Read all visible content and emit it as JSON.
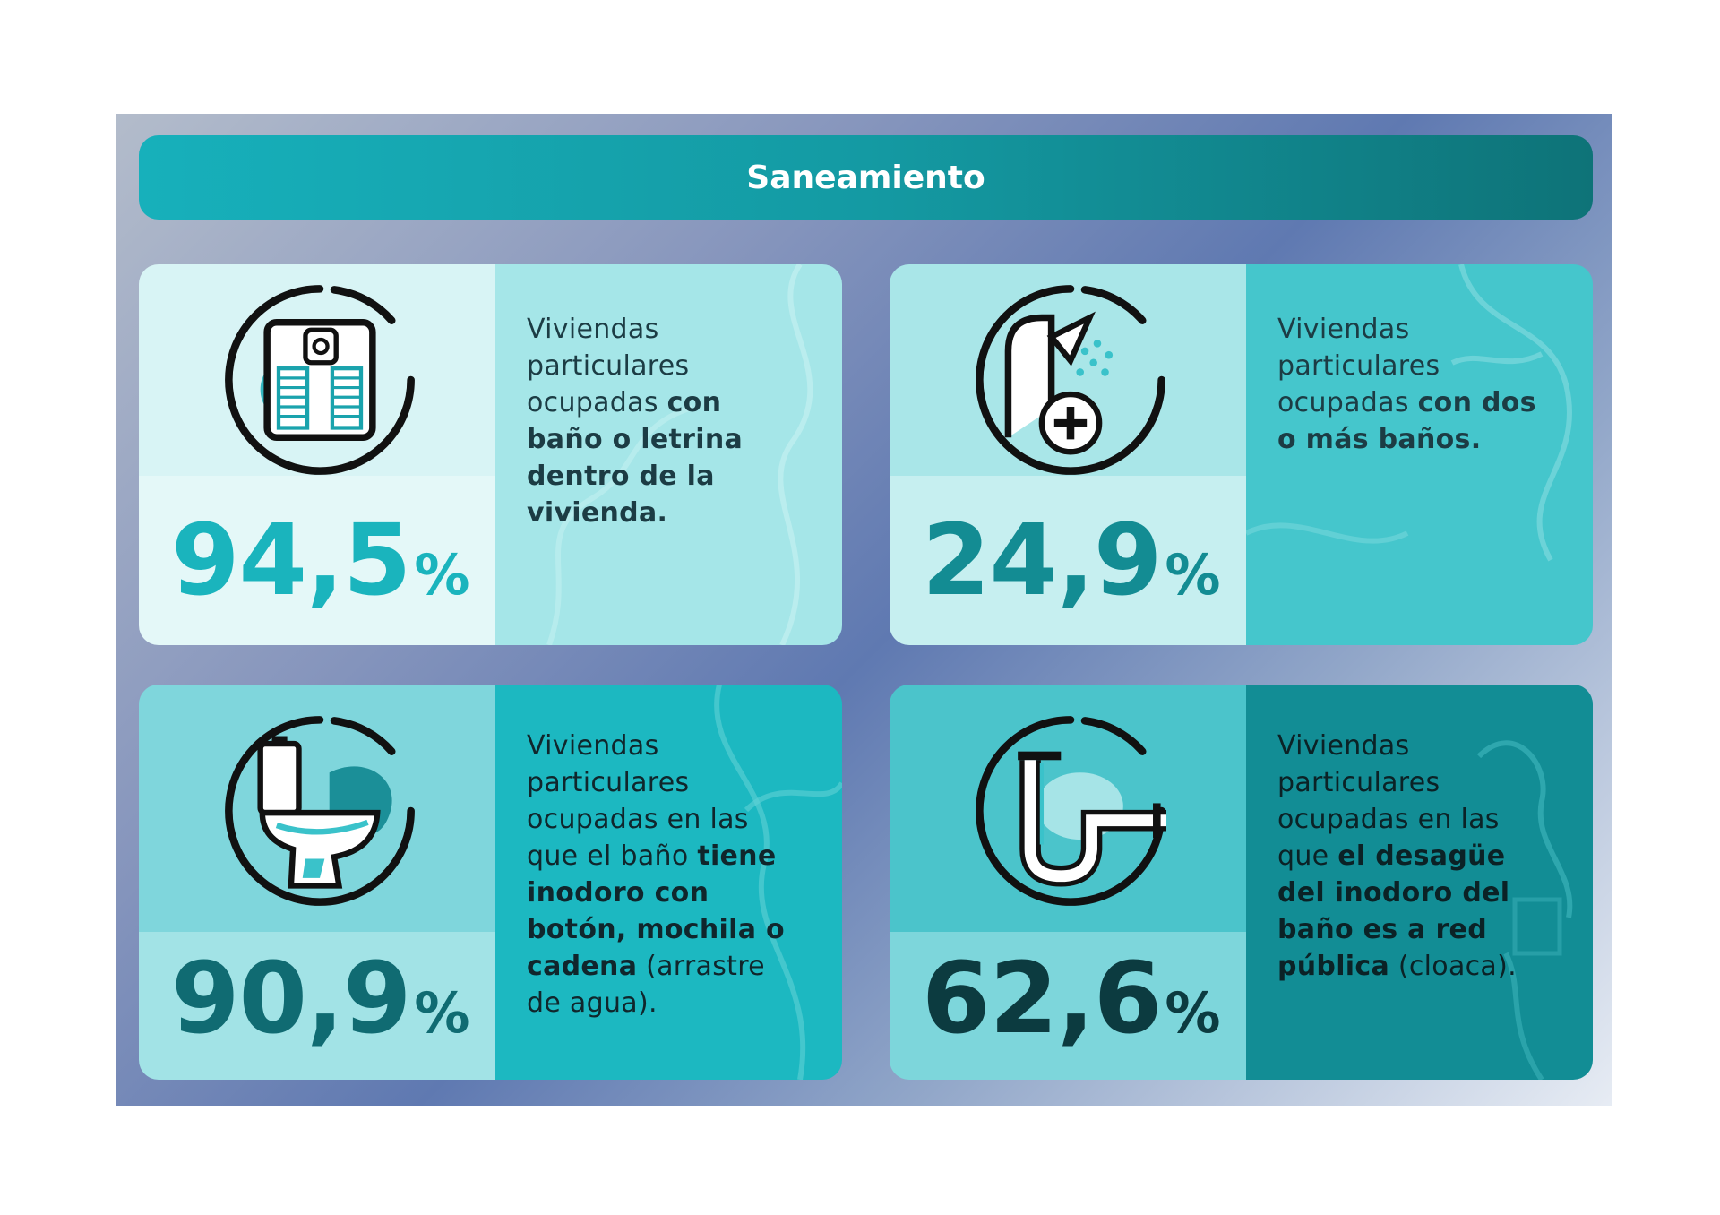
{
  "title": "Saneamiento",
  "cards": [
    {
      "value": "94,5",
      "percent_sign": "%",
      "desc_pre": "Viviendas particulares ocupadas ",
      "desc_bold": "con baño o letrina dentro de la vivienda.",
      "desc_post": "",
      "icon": "bathroom-icon",
      "colors": {
        "icon_bg": "#d8f4f5",
        "num_bg": "#e4f8f8",
        "text_bg": "#a5e6e8",
        "num": "#1ab4bd",
        "text": "#1c3c44"
      }
    },
    {
      "value": "24,9",
      "percent_sign": "%",
      "desc_pre": "Viviendas particulares ocupadas ",
      "desc_bold": "con dos o más baños.",
      "desc_post": "",
      "icon": "shower-plus-icon",
      "colors": {
        "icon_bg": "#a9e6e8",
        "num_bg": "#c6eff0",
        "text_bg": "#45c6cc",
        "num": "#138c93",
        "text": "#1c3c44"
      }
    },
    {
      "value": "90,9",
      "percent_sign": "%",
      "desc_pre": "Viviendas particulares ocupadas en las que el baño ",
      "desc_bold": "tiene inodoro con botón, mochila o cadena",
      "desc_post": " (arrastre de agua).",
      "icon": "toilet-icon",
      "colors": {
        "icon_bg": "#7fd6dc",
        "num_bg": "#a2e3e6",
        "text_bg": "#1cb8c1",
        "num": "#106b72",
        "text": "#10262c"
      }
    },
    {
      "value": "62,6",
      "percent_sign": "%",
      "desc_pre": "Viviendas particulares ocupadas en las que ",
      "desc_bold": "el desagüe del inodoro del baño es a red pública",
      "desc_post": " (cloaca).",
      "icon": "drain-pipe-icon",
      "colors": {
        "icon_bg": "#4bc4cb",
        "num_bg": "#7dd6db",
        "text_bg": "#128d95",
        "num": "#0c3b40",
        "text": "#0b2226"
      }
    }
  ]
}
